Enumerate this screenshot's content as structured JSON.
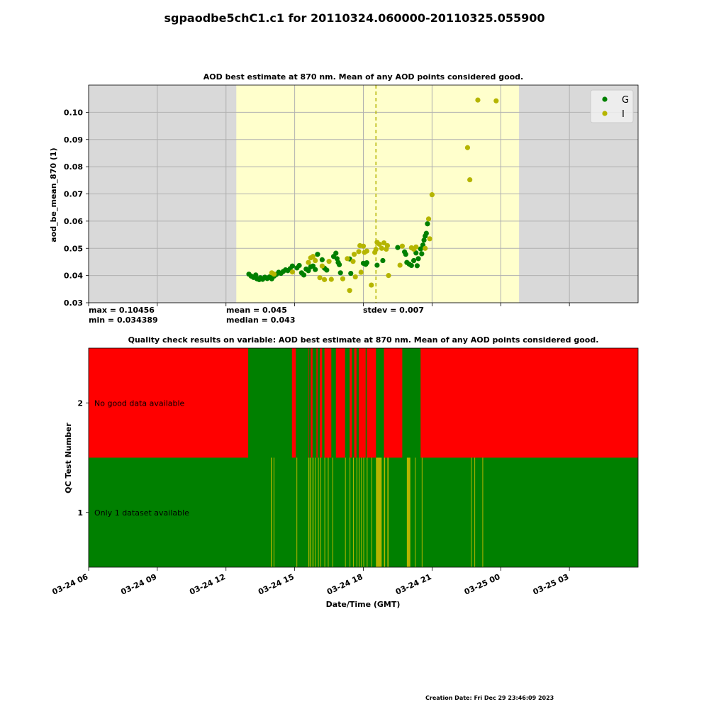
{
  "page": {
    "title": "sgpaodbe5chC1.c1 for 20110324.060000-20110325.055900",
    "creation_date": "Creation Date: Fri Dec 29 23:46:09 2023"
  },
  "stats": {
    "max": "max = 0.10456",
    "min": "min = 0.034389",
    "mean": "mean = 0.045",
    "median": "median = 0.043",
    "stdev": "stdev = 0.007"
  },
  "chart_data": [
    {
      "type": "scatter",
      "title": "AOD best estimate at 870 nm. Mean of any AOD points considered good.",
      "ylabel": "aod_be_mean_870 (1)",
      "xlabel": "",
      "x_unit": "hours since 2011-03-24 00:00 GMT",
      "xlim": [
        6,
        30
      ],
      "ylim": [
        0.03,
        0.11
      ],
      "yticks": [
        0.03,
        0.04,
        0.05,
        0.06,
        0.07,
        0.08,
        0.09,
        0.1
      ],
      "ytick_labels": [
        "0.03",
        "0.04",
        "0.05",
        "0.06",
        "0.07",
        "0.08",
        "0.09",
        "0.10"
      ],
      "grid": true,
      "legend": "top-right",
      "daylight_span": [
        12.45,
        24.8
      ],
      "vline_x": 18.55,
      "colors": {
        "G": "#008000",
        "I": "#b5b500",
        "daylight": "#ffffcc",
        "night": "#d9d9d9",
        "vline": "#b5b500"
      },
      "series": [
        {
          "name": "G",
          "color": "#008000",
          "points": [
            [
              13.0,
              0.0405
            ],
            [
              13.1,
              0.0398
            ],
            [
              13.2,
              0.0393
            ],
            [
              13.3,
              0.0402
            ],
            [
              13.35,
              0.0388
            ],
            [
              13.45,
              0.0385
            ],
            [
              13.5,
              0.0392
            ],
            [
              13.6,
              0.0386
            ],
            [
              13.7,
              0.0394
            ],
            [
              13.8,
              0.0389
            ],
            [
              13.9,
              0.0395
            ],
            [
              14.0,
              0.0388
            ],
            [
              14.1,
              0.0398
            ],
            [
              14.2,
              0.0404
            ],
            [
              14.3,
              0.0412
            ],
            [
              14.4,
              0.0408
            ],
            [
              14.5,
              0.0415
            ],
            [
              14.6,
              0.0421
            ],
            [
              14.7,
              0.0418
            ],
            [
              14.8,
              0.0425
            ],
            [
              14.9,
              0.0435
            ],
            [
              15.1,
              0.0428
            ],
            [
              15.2,
              0.0437
            ],
            [
              15.3,
              0.041
            ],
            [
              15.4,
              0.0402
            ],
            [
              15.5,
              0.0424
            ],
            [
              15.6,
              0.0418
            ],
            [
              15.7,
              0.0432
            ],
            [
              15.8,
              0.0435
            ],
            [
              15.9,
              0.0422
            ],
            [
              16.0,
              0.0478
            ],
            [
              16.2,
              0.0458
            ],
            [
              16.3,
              0.0427
            ],
            [
              16.4,
              0.042
            ],
            [
              16.7,
              0.047
            ],
            [
              16.8,
              0.0482
            ],
            [
              16.85,
              0.0462
            ],
            [
              16.9,
              0.0448
            ],
            [
              16.95,
              0.044
            ],
            [
              17.0,
              0.041
            ],
            [
              17.4,
              0.0461
            ],
            [
              17.45,
              0.0408
            ],
            [
              18.0,
              0.0445
            ],
            [
              18.1,
              0.0441
            ],
            [
              18.15,
              0.0447
            ],
            [
              18.6,
              0.0438
            ],
            [
              18.85,
              0.0455
            ],
            [
              19.5,
              0.0503
            ],
            [
              19.8,
              0.0487
            ],
            [
              19.85,
              0.0478
            ],
            [
              19.9,
              0.0448
            ],
            [
              20.0,
              0.0442
            ],
            [
              20.1,
              0.0437
            ],
            [
              20.2,
              0.0455
            ],
            [
              20.3,
              0.0483
            ],
            [
              20.35,
              0.0436
            ],
            [
              20.4,
              0.0462
            ],
            [
              20.5,
              0.0498
            ],
            [
              20.55,
              0.048
            ],
            [
              20.6,
              0.0512
            ],
            [
              20.65,
              0.053
            ],
            [
              20.7,
              0.0545
            ],
            [
              20.75,
              0.0555
            ],
            [
              20.8,
              0.059
            ]
          ]
        },
        {
          "name": "I",
          "color": "#b5b500",
          "points": [
            [
              14.0,
              0.041
            ],
            [
              14.1,
              0.0405
            ],
            [
              14.9,
              0.0413
            ],
            [
              15.6,
              0.0448
            ],
            [
              15.7,
              0.0465
            ],
            [
              15.8,
              0.047
            ],
            [
              15.9,
              0.0455
            ],
            [
              16.1,
              0.0392
            ],
            [
              16.2,
              0.0435
            ],
            [
              16.3,
              0.0385
            ],
            [
              16.5,
              0.0452
            ],
            [
              16.6,
              0.0386
            ],
            [
              17.1,
              0.0388
            ],
            [
              17.3,
              0.0462
            ],
            [
              17.4,
              0.0345
            ],
            [
              17.55,
              0.0452
            ],
            [
              17.6,
              0.0478
            ],
            [
              17.65,
              0.0395
            ],
            [
              17.8,
              0.0488
            ],
            [
              17.85,
              0.051
            ],
            [
              17.9,
              0.0412
            ],
            [
              18.0,
              0.0508
            ],
            [
              18.05,
              0.0485
            ],
            [
              18.15,
              0.049
            ],
            [
              18.35,
              0.0365
            ],
            [
              18.5,
              0.0485
            ],
            [
              18.55,
              0.0496
            ],
            [
              18.6,
              0.0522
            ],
            [
              18.7,
              0.0515
            ],
            [
              18.8,
              0.05
            ],
            [
              18.9,
              0.052
            ],
            [
              19.0,
              0.0497
            ],
            [
              19.05,
              0.051
            ],
            [
              19.1,
              0.04
            ],
            [
              19.6,
              0.0438
            ],
            [
              19.7,
              0.0508
            ],
            [
              20.1,
              0.0502
            ],
            [
              20.2,
              0.0497
            ],
            [
              20.3,
              0.0505
            ],
            [
              20.7,
              0.05
            ],
            [
              20.85,
              0.0608
            ],
            [
              20.9,
              0.0535
            ],
            [
              21.0,
              0.0697
            ],
            [
              22.55,
              0.087
            ],
            [
              22.65,
              0.0752
            ],
            [
              23.0,
              0.1045
            ],
            [
              23.8,
              0.1042
            ]
          ]
        }
      ]
    },
    {
      "type": "heatmap",
      "title": "Quality check results on variable: AOD best estimate at 870 nm. Mean of any AOD points considered good.",
      "ylabel": "QC Test Number",
      "xlabel": "Date/Time (GMT)",
      "x_unit": "hours since 2011-03-24 00:00 GMT",
      "xlim": [
        6,
        30
      ],
      "xticks": [
        6,
        9,
        12,
        15,
        18,
        21,
        24,
        27
      ],
      "xtick_labels": [
        "03-24 06",
        "03-24 09",
        "03-24 12",
        "03-24 15",
        "03-24 18",
        "03-24 21",
        "03-25 00",
        "03-25 03"
      ],
      "yticks": [
        1,
        2
      ],
      "ytick_labels": [
        "1",
        "2"
      ],
      "colors": {
        "pass": "#008000",
        "fail": "#ff0000",
        "indeterminate": "#b5b500"
      },
      "rows": [
        {
          "test": 2,
          "label": "No good data available",
          "background": "#ff0000",
          "segments": [
            [
              12.97,
              14.88,
              "#008000"
            ],
            [
              15.05,
              15.6,
              "#008000"
            ],
            [
              15.62,
              15.7,
              "#008000"
            ],
            [
              15.78,
              15.95,
              "#008000"
            ],
            [
              16.0,
              16.1,
              "#008000"
            ],
            [
              16.2,
              16.3,
              "#008000"
            ],
            [
              16.6,
              16.8,
              "#008000"
            ],
            [
              17.2,
              17.4,
              "#008000"
            ],
            [
              17.5,
              17.6,
              "#008000"
            ],
            [
              17.7,
              17.8,
              "#008000"
            ],
            [
              18.1,
              18.15,
              "#008000"
            ],
            [
              18.55,
              18.9,
              "#008000"
            ],
            [
              19.7,
              20.5,
              "#008000"
            ]
          ]
        },
        {
          "test": 1,
          "label": "Only 1 dataset available",
          "background": "#008000",
          "segments": [
            [
              13.96,
              14.0,
              "#b5b500"
            ],
            [
              14.08,
              14.1,
              "#b5b500"
            ],
            [
              15.08,
              15.11,
              "#b5b500"
            ],
            [
              15.6,
              15.64,
              "#b5b500"
            ],
            [
              15.68,
              15.72,
              "#b5b500"
            ],
            [
              15.78,
              15.82,
              "#b5b500"
            ],
            [
              15.88,
              15.91,
              "#b5b500"
            ],
            [
              16.02,
              16.05,
              "#b5b500"
            ],
            [
              16.12,
              16.15,
              "#b5b500"
            ],
            [
              16.3,
              16.33,
              "#b5b500"
            ],
            [
              16.45,
              16.48,
              "#b5b500"
            ],
            [
              16.65,
              16.68,
              "#b5b500"
            ],
            [
              17.2,
              17.23,
              "#b5b500"
            ],
            [
              17.4,
              17.43,
              "#b5b500"
            ],
            [
              17.55,
              17.58,
              "#b5b500"
            ],
            [
              17.7,
              17.73,
              "#b5b500"
            ],
            [
              17.8,
              17.83,
              "#b5b500"
            ],
            [
              17.9,
              17.93,
              "#b5b500"
            ],
            [
              18.0,
              18.03,
              "#b5b500"
            ],
            [
              18.15,
              18.18,
              "#b5b500"
            ],
            [
              18.35,
              18.38,
              "#b5b500"
            ],
            [
              18.55,
              18.8,
              "#b5b500"
            ],
            [
              18.9,
              18.95,
              "#b5b500"
            ],
            [
              19.05,
              19.1,
              "#b5b500"
            ],
            [
              19.9,
              20.05,
              "#b5b500"
            ],
            [
              20.25,
              20.28,
              "#b5b500"
            ],
            [
              20.55,
              20.58,
              "#b5b500"
            ],
            [
              22.7,
              22.73,
              "#b5b500"
            ],
            [
              22.85,
              22.88,
              "#b5b500"
            ],
            [
              23.2,
              23.23,
              "#b5b500"
            ]
          ]
        }
      ]
    }
  ]
}
